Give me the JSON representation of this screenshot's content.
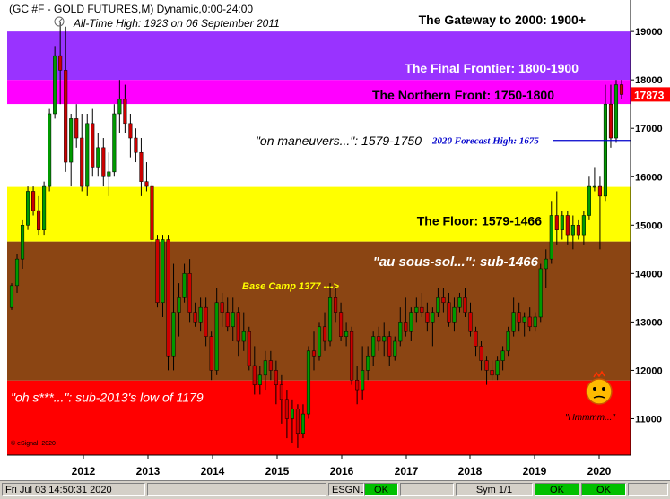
{
  "header": {
    "title": "(GC #F - GOLD FUTURES,M) Dynamic,0:00-24:00",
    "subtitle": "All-Time High:  1923 on 06 September 2011"
  },
  "colors": {
    "frontier": "#9933ff",
    "northern": "#ff00ff",
    "floor": "#ffff00",
    "sousol": "#8b4513",
    "low": "#ff0000",
    "up_candle": "#009900",
    "down_candle": "#cc0000",
    "forecast_line": "#0000cc",
    "price_tag": "#ff0000"
  },
  "chart_data": {
    "type": "candlestick",
    "ylim": [
      10250,
      19650
    ],
    "y_ticks": [
      "19000",
      "18000",
      "17000",
      "16000",
      "15000",
      "14000",
      "13000",
      "12000",
      "11000"
    ],
    "x_ticks": [
      "2012",
      "2013",
      "2014",
      "2015",
      "2016",
      "2017",
      "2018",
      "2019",
      "2020"
    ],
    "zones": [
      {
        "key": "gateway",
        "label": "The Gateway to 2000:  1900+",
        "from": 19000,
        "to": 19650,
        "color": "#ffffff",
        "text_color": "#000000",
        "text_style": "bold"
      },
      {
        "key": "frontier",
        "label": "The Final Frontier:  1800-1900",
        "from": 18000,
        "to": 19000,
        "color": "#9933ff",
        "text_color": "#ffffff",
        "text_style": "bold"
      },
      {
        "key": "northern",
        "label": "The Northern Front:  1750-1800",
        "from": 17500,
        "to": 18000,
        "color": "#ff00ff",
        "text_color": "#000000",
        "text_style": "bold"
      },
      {
        "key": "maneuvers",
        "label": "\"on maneuvers...\":  1579-1750",
        "from": 15790,
        "to": 17500,
        "color": "#ffffff",
        "text_color": "#000000",
        "text_style": "italic"
      },
      {
        "key": "floor",
        "label": "The Floor:  1579-1466",
        "from": 14660,
        "to": 15790,
        "color": "#ffff00",
        "text_color": "#000000",
        "text_style": "bold"
      },
      {
        "key": "sousol",
        "label": "\"au sous-sol...\":  sub-1466",
        "from": 11790,
        "to": 14660,
        "color": "#8b4513",
        "text_color": "#ffffff",
        "text_style": "bolditalic"
      },
      {
        "key": "low",
        "label": "\"oh s***...\":  sub-2013's low of 1179",
        "from": 10250,
        "to": 11790,
        "color": "#ff0000",
        "text_color": "#ffffff",
        "text_style": "italic"
      }
    ],
    "annotations": {
      "base_camp": "Base Camp 1377 --->",
      "forecast": "2020 Forecast High:  1675",
      "forecast_value": 16750,
      "hmmm": "\"Hmmmm...\"",
      "copyright": "© eSignal, 2020"
    },
    "last_price": "17873",
    "candles": [
      [
        13300,
        13800,
        13250,
        13750
      ],
      [
        13750,
        14400,
        13600,
        14300
      ],
      [
        14300,
        15100,
        14100,
        15000
      ],
      [
        15000,
        15800,
        14900,
        15700
      ],
      [
        15700,
        15800,
        15200,
        15300
      ],
      [
        15300,
        15600,
        14800,
        14900
      ],
      [
        14900,
        15900,
        14800,
        15800
      ],
      [
        15800,
        17400,
        15700,
        17300
      ],
      [
        17300,
        18700,
        17200,
        18500
      ],
      [
        18500,
        19200,
        17500,
        18200
      ],
      [
        18200,
        19100,
        16100,
        16300
      ],
      [
        16300,
        17300,
        15800,
        17200
      ],
      [
        17200,
        17500,
        16600,
        16800
      ],
      [
        16800,
        17300,
        15700,
        15800
      ],
      [
        15800,
        17300,
        15600,
        17100
      ],
      [
        17100,
        17400,
        16000,
        16200
      ],
      [
        16200,
        16900,
        16000,
        16600
      ],
      [
        16600,
        16800,
        15800,
        16000
      ],
      [
        16000,
        16500,
        15600,
        16100
      ],
      [
        16100,
        17500,
        16000,
        17300
      ],
      [
        17300,
        18000,
        16900,
        17600
      ],
      [
        17600,
        17900,
        16900,
        17100
      ],
      [
        17100,
        17300,
        16400,
        16800
      ],
      [
        16800,
        17000,
        16300,
        16500
      ],
      [
        16500,
        16800,
        15600,
        15900
      ],
      [
        15900,
        16300,
        15700,
        15800
      ],
      [
        15800,
        15900,
        14600,
        14700
      ],
      [
        14700,
        14800,
        13300,
        13400
      ],
      [
        13400,
        14800,
        13100,
        14700
      ],
      [
        14700,
        14800,
        12000,
        12300
      ],
      [
        12300,
        14200,
        12000,
        13200
      ],
      [
        13200,
        13800,
        12700,
        13500
      ],
      [
        13500,
        14200,
        13400,
        14000
      ],
      [
        14000,
        14300,
        13000,
        13200
      ],
      [
        13200,
        13400,
        12900,
        13000
      ],
      [
        13000,
        13500,
        12800,
        13300
      ],
      [
        13300,
        13500,
        12500,
        12700
      ],
      [
        12700,
        12800,
        11800,
        12000
      ],
      [
        12000,
        13700,
        11900,
        13400
      ],
      [
        13400,
        13600,
        12900,
        13200
      ],
      [
        13200,
        13500,
        12800,
        12900
      ],
      [
        12900,
        13500,
        12600,
        13200
      ],
      [
        13200,
        13300,
        12300,
        12600
      ],
      [
        12600,
        13200,
        12400,
        12800
      ],
      [
        12800,
        12900,
        12000,
        12100
      ],
      [
        12100,
        12500,
        11500,
        11700
      ],
      [
        11700,
        12100,
        11500,
        11900
      ],
      [
        11900,
        12400,
        11600,
        12200
      ],
      [
        12200,
        12400,
        11800,
        12000
      ],
      [
        12000,
        12200,
        11300,
        11700
      ],
      [
        11700,
        11900,
        10900,
        11400
      ],
      [
        11400,
        11600,
        10600,
        11000
      ],
      [
        11000,
        11400,
        10500,
        11200
      ],
      [
        11200,
        11300,
        10400,
        10700
      ],
      [
        10700,
        11300,
        10600,
        11100
      ],
      [
        11100,
        12500,
        11000,
        12400
      ],
      [
        12400,
        12800,
        12000,
        12300
      ],
      [
        12300,
        13000,
        12200,
        12900
      ],
      [
        12900,
        13200,
        12400,
        12600
      ],
      [
        12600,
        13800,
        12500,
        13500
      ],
      [
        13500,
        13700,
        13000,
        13200
      ],
      [
        13200,
        13400,
        12600,
        12700
      ],
      [
        12700,
        13000,
        12500,
        12800
      ],
      [
        12800,
        12900,
        11700,
        11800
      ],
      [
        11800,
        12100,
        11300,
        11600
      ],
      [
        11600,
        12500,
        11400,
        12000
      ],
      [
        12000,
        12500,
        11800,
        12300
      ],
      [
        12300,
        12800,
        12100,
        12700
      ],
      [
        12700,
        12900,
        12400,
        12600
      ],
      [
        12600,
        13000,
        12300,
        12700
      ],
      [
        12700,
        12800,
        12100,
        12300
      ],
      [
        12300,
        12700,
        12200,
        12600
      ],
      [
        12600,
        13300,
        12500,
        13000
      ],
      [
        13000,
        13500,
        12700,
        12800
      ],
      [
        12800,
        13300,
        12600,
        13200
      ],
      [
        13200,
        13500,
        13000,
        13300
      ],
      [
        13300,
        13600,
        13100,
        13200
      ],
      [
        13200,
        13400,
        12800,
        13000
      ],
      [
        13000,
        13300,
        12500,
        13200
      ],
      [
        13200,
        13700,
        13100,
        13500
      ],
      [
        13500,
        13700,
        13200,
        13400
      ],
      [
        13400,
        13600,
        12900,
        13000
      ],
      [
        13000,
        13500,
        12800,
        13300
      ],
      [
        13300,
        13600,
        13200,
        13500
      ],
      [
        13500,
        13700,
        13100,
        13200
      ],
      [
        13200,
        13400,
        12700,
        12800
      ],
      [
        12800,
        12900,
        12300,
        12500
      ],
      [
        12500,
        12600,
        12000,
        12200
      ],
      [
        12200,
        12300,
        11700,
        12000
      ],
      [
        12000,
        12200,
        11800,
        11900
      ],
      [
        11900,
        12300,
        11800,
        12200
      ],
      [
        12200,
        12500,
        12000,
        12400
      ],
      [
        12400,
        12900,
        12300,
        12800
      ],
      [
        12800,
        13500,
        12700,
        13200
      ],
      [
        13200,
        13400,
        12800,
        13000
      ],
      [
        13000,
        13200,
        12700,
        13100
      ],
      [
        13100,
        13300,
        12800,
        12900
      ],
      [
        12900,
        13200,
        12800,
        13100
      ],
      [
        13100,
        14200,
        13000,
        14100
      ],
      [
        14100,
        14500,
        13700,
        14300
      ],
      [
        14300,
        15500,
        14200,
        15200
      ],
      [
        15200,
        15700,
        14600,
        14900
      ],
      [
        14900,
        15300,
        14700,
        15200
      ],
      [
        15200,
        15300,
        14600,
        14800
      ],
      [
        14800,
        15200,
        14500,
        15000
      ],
      [
        15000,
        15100,
        14700,
        14800
      ],
      [
        14800,
        15300,
        14600,
        15200
      ],
      [
        15200,
        16000,
        15100,
        15800
      ],
      [
        15800,
        16200,
        15700,
        15800
      ],
      [
        15800,
        16000,
        14500,
        15600
      ],
      [
        15600,
        17900,
        15500,
        17500
      ],
      [
        17500,
        17900,
        16600,
        16800
      ],
      [
        16800,
        18000,
        16700,
        17900
      ],
      [
        17900,
        18000,
        17600,
        17700
      ]
    ]
  },
  "status": {
    "datetime": "Fri Jul 03 14:50:31 2020",
    "feed": "ESGNL:",
    "feed_status": "OK",
    "sym": "Sym 1/1",
    "ok2": "OK",
    "ok3": "OK"
  }
}
